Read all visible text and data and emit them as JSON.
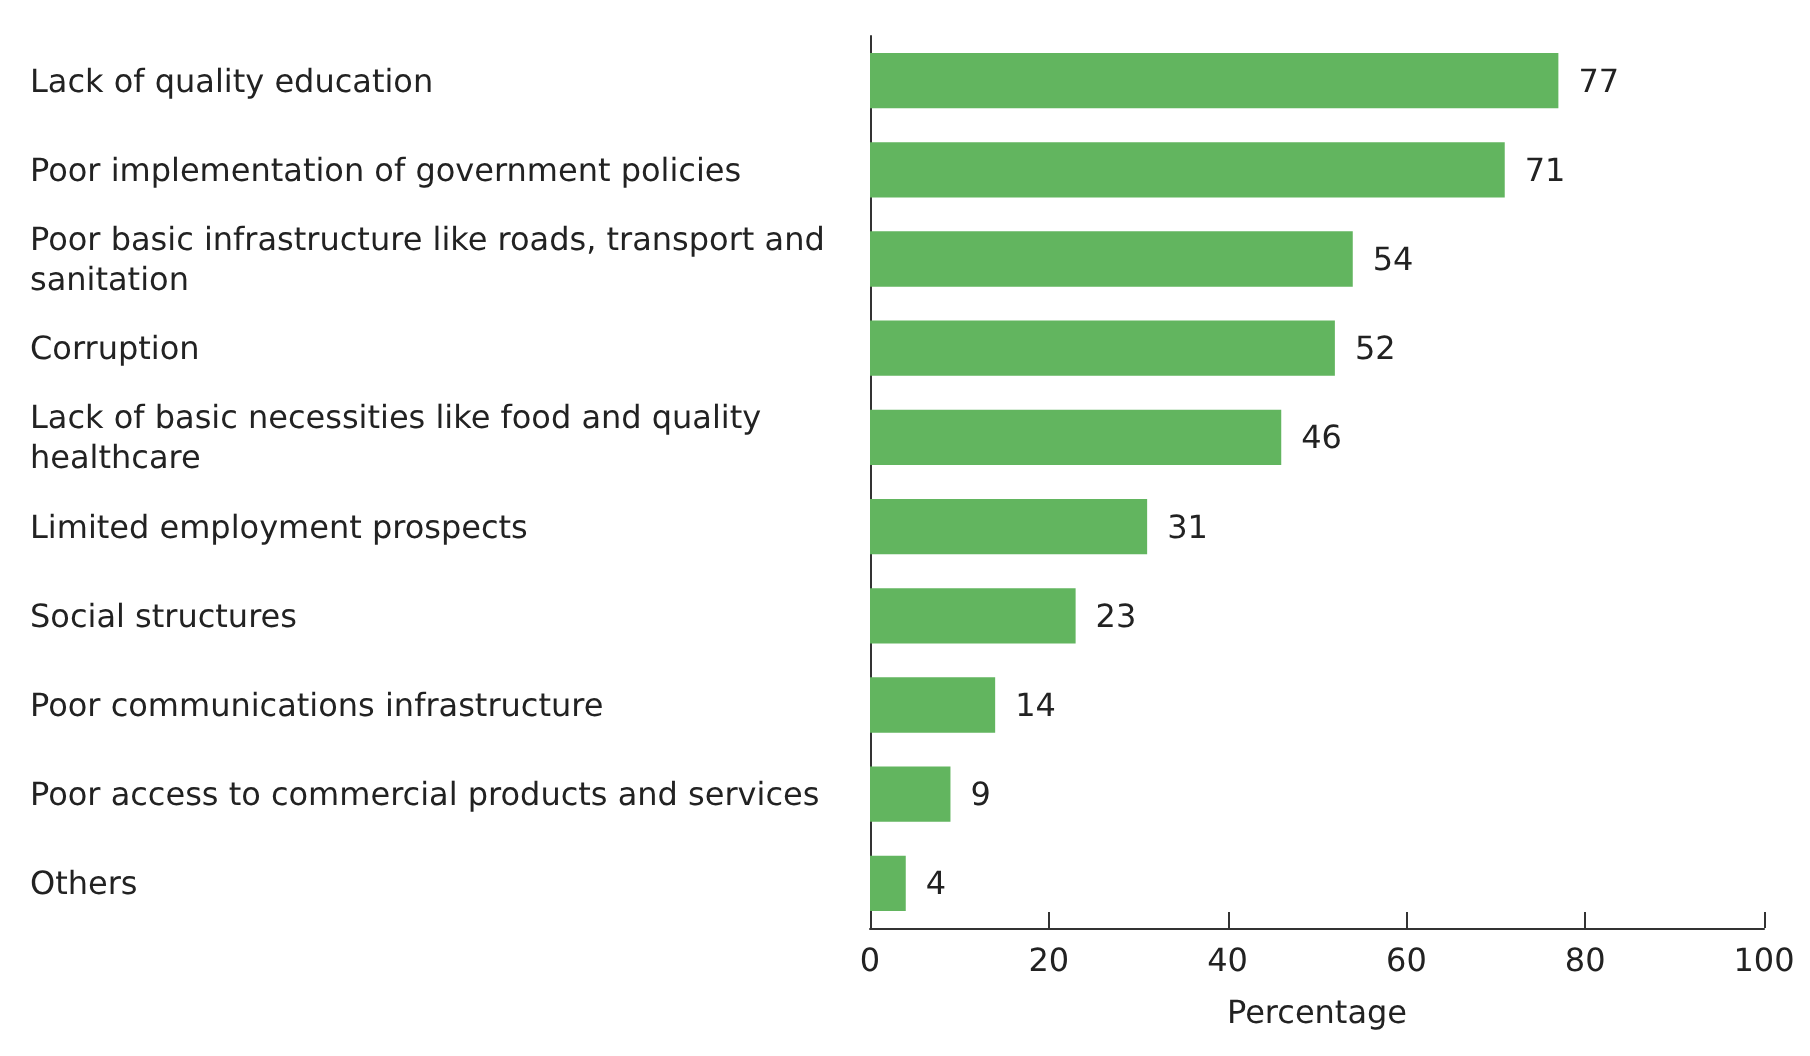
{
  "chart_data": {
    "type": "bar",
    "orientation": "horizontal",
    "xlabel": "Percentage",
    "categories": [
      "Lack of quality education",
      "Poor implementation of government policies",
      "Poor basic infrastructure like roads, transport and sanitation",
      "Corruption",
      "Lack of basic necessities like food and quality healthcare",
      "Limited employment prospects",
      "Social structures",
      "Poor communications infrastructure",
      "Poor access to commercial products and services",
      "Others"
    ],
    "values": [
      77,
      71,
      54,
      52,
      46,
      31,
      23,
      14,
      9,
      4
    ],
    "color": "#62b55f",
    "xlim": [
      0,
      100
    ],
    "xticks": [
      0,
      20,
      40,
      60,
      80,
      100
    ],
    "data_labels": true
  }
}
